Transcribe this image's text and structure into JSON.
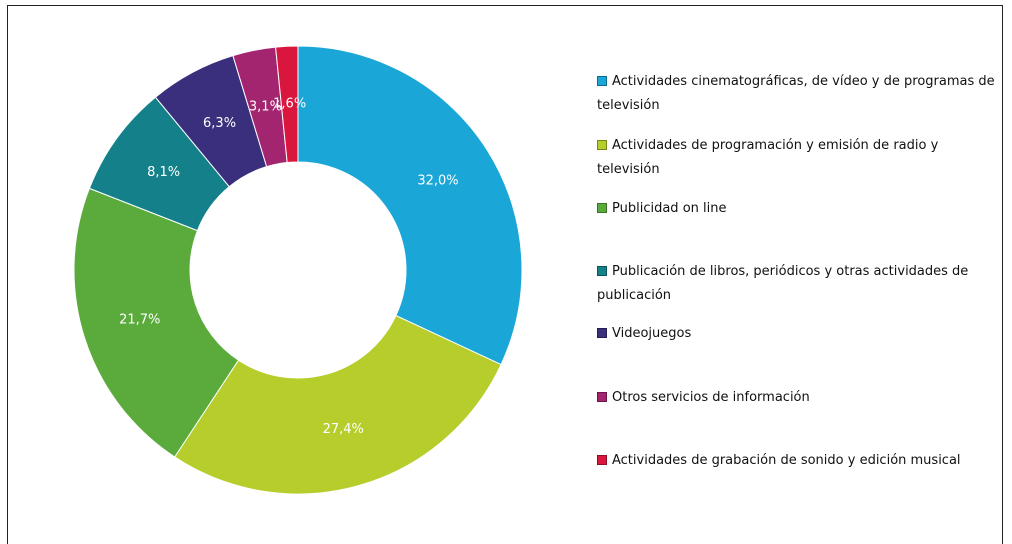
{
  "chart_data": {
    "type": "donut",
    "categories": [
      "Actividades cinematográficas, de vídeo y de programas de televisión",
      "Actividades de programación y emisión de radio y televisión",
      "Publicidad on line",
      "Publicación de libros, periódicos y otras actividades de publicación",
      "Videojuegos",
      "Otros servicios de información",
      "Actividades de grabación de sonido y edición musical"
    ],
    "values": [
      32.0,
      27.4,
      21.7,
      8.1,
      6.3,
      3.1,
      1.6
    ],
    "value_labels": [
      "32,0%",
      "27,4%",
      "21,7%",
      "8,1%",
      "6,3%",
      "3,1%",
      "1,6%"
    ],
    "colors": [
      "#1aa7d8",
      "#b6cd2c",
      "#5aab3c",
      "#14808a",
      "#3a2f7c",
      "#a3246f",
      "#d9163d"
    ],
    "legend": "right"
  }
}
